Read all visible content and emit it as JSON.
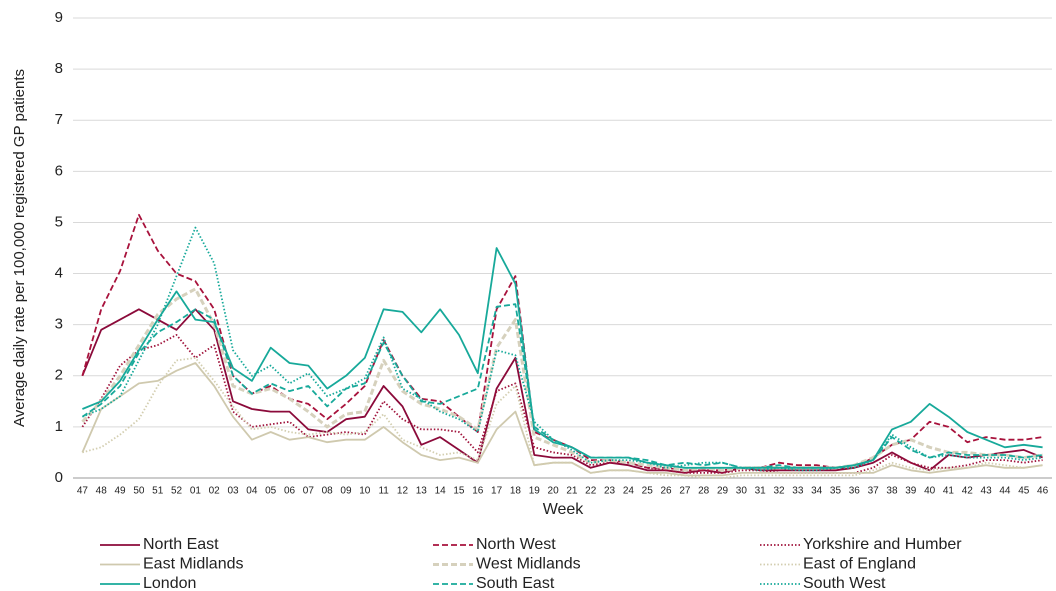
{
  "chart_data": {
    "type": "line",
    "y_label": "Average daily rate per 100,000 registered GP patients",
    "x_label": "Week",
    "categories": [
      "47",
      "48",
      "49",
      "50",
      "51",
      "52",
      "01",
      "02",
      "03",
      "04",
      "05",
      "06",
      "07",
      "08",
      "09",
      "10",
      "11",
      "12",
      "13",
      "14",
      "15",
      "16",
      "17",
      "18",
      "19",
      "20",
      "21",
      "22",
      "23",
      "24",
      "25",
      "26",
      "27",
      "28",
      "29",
      "30",
      "31",
      "32",
      "33",
      "34",
      "35",
      "36",
      "37",
      "38",
      "39",
      "40",
      "41",
      "42",
      "43",
      "44",
      "45",
      "46"
    ],
    "ylim": [
      0,
      9
    ],
    "yticks": [
      0,
      1,
      2,
      3,
      4,
      5,
      6,
      7,
      8,
      9
    ],
    "grid": true,
    "series": [
      {
        "name": "North East",
        "color": "#8b0a3a",
        "line_style": "solid",
        "values": [
          2.0,
          2.9,
          3.1,
          3.3,
          3.1,
          2.9,
          3.3,
          2.9,
          1.5,
          1.35,
          1.3,
          1.3,
          0.95,
          0.9,
          1.15,
          1.2,
          1.8,
          1.4,
          0.65,
          0.8,
          0.55,
          0.3,
          1.75,
          2.35,
          0.45,
          0.4,
          0.4,
          0.2,
          0.3,
          0.25,
          0.15,
          0.15,
          0.1,
          0.15,
          0.1,
          0.2,
          0.15,
          0.15,
          0.15,
          0.15,
          0.15,
          0.2,
          0.3,
          0.5,
          0.3,
          0.15,
          0.45,
          0.4,
          0.45,
          0.5,
          0.55,
          0.4
        ]
      },
      {
        "name": "North West",
        "color": "#a8123c",
        "line_style": "dashed",
        "values": [
          2.0,
          3.3,
          4.05,
          5.15,
          4.45,
          4.0,
          3.85,
          3.3,
          2.0,
          1.65,
          1.8,
          1.55,
          1.45,
          1.15,
          1.45,
          1.8,
          2.7,
          2.0,
          1.55,
          1.5,
          1.2,
          0.9,
          3.3,
          3.95,
          0.9,
          0.75,
          0.6,
          0.35,
          0.35,
          0.3,
          0.2,
          0.2,
          0.15,
          0.15,
          0.15,
          0.2,
          0.2,
          0.3,
          0.25,
          0.25,
          0.2,
          0.2,
          0.4,
          0.65,
          0.75,
          1.1,
          1.0,
          0.7,
          0.8,
          0.75,
          0.75,
          0.8
        ]
      },
      {
        "name": "Yorkshire and Humber",
        "color": "#a0143c",
        "line_style": "dotted",
        "values": [
          1.0,
          1.55,
          2.2,
          2.5,
          2.6,
          2.8,
          2.35,
          2.6,
          1.3,
          1.0,
          1.05,
          1.1,
          0.8,
          0.85,
          0.9,
          0.85,
          1.5,
          1.15,
          0.95,
          0.95,
          0.9,
          0.5,
          1.7,
          1.85,
          0.6,
          0.5,
          0.45,
          0.25,
          0.3,
          0.3,
          0.2,
          0.15,
          0.1,
          0.1,
          0.1,
          0.15,
          0.15,
          0.1,
          0.1,
          0.1,
          0.1,
          0.1,
          0.2,
          0.45,
          0.3,
          0.2,
          0.2,
          0.25,
          0.35,
          0.35,
          0.3,
          0.35
        ]
      },
      {
        "name": "East Midlands",
        "color": "#cfc9ae",
        "line_style": "solid",
        "values": [
          0.5,
          1.35,
          1.6,
          1.85,
          1.9,
          2.1,
          2.25,
          1.8,
          1.2,
          0.75,
          0.9,
          0.75,
          0.8,
          0.7,
          0.75,
          0.75,
          1.0,
          0.7,
          0.45,
          0.35,
          0.4,
          0.3,
          0.95,
          1.3,
          0.25,
          0.3,
          0.3,
          0.1,
          0.15,
          0.15,
          0.1,
          0.1,
          0.05,
          0.05,
          0.05,
          0.1,
          0.1,
          0.1,
          0.1,
          0.1,
          0.1,
          0.1,
          0.1,
          0.25,
          0.15,
          0.1,
          0.15,
          0.2,
          0.25,
          0.2,
          0.2,
          0.25
        ]
      },
      {
        "name": "West Midlands",
        "color": "#d6d1bd",
        "line_style": "dashed",
        "values": [
          1.1,
          1.5,
          2.0,
          2.6,
          3.2,
          3.5,
          3.7,
          3.0,
          1.8,
          1.65,
          1.75,
          1.55,
          1.3,
          1.0,
          1.25,
          1.3,
          2.3,
          1.7,
          1.45,
          1.35,
          1.2,
          0.95,
          2.55,
          3.1,
          0.8,
          0.65,
          0.5,
          0.3,
          0.35,
          0.3,
          0.25,
          0.2,
          0.15,
          0.2,
          0.15,
          0.2,
          0.2,
          0.2,
          0.2,
          0.2,
          0.2,
          0.25,
          0.4,
          0.65,
          0.75,
          0.6,
          0.5,
          0.5,
          0.45,
          0.45,
          0.4,
          0.45
        ]
      },
      {
        "name": "East of England",
        "color": "#d3ceb0",
        "line_style": "dotted",
        "values": [
          0.5,
          0.6,
          0.85,
          1.15,
          1.8,
          2.3,
          2.35,
          1.9,
          1.4,
          0.95,
          1.0,
          0.9,
          0.85,
          0.9,
          0.85,
          0.9,
          1.25,
          0.75,
          0.6,
          0.45,
          0.5,
          0.35,
          1.45,
          1.8,
          0.25,
          0.3,
          0.3,
          0.1,
          0.15,
          0.15,
          0.1,
          0.05,
          0.05,
          0.0,
          0.0,
          0.05,
          0.05,
          0.05,
          0.05,
          0.05,
          0.05,
          0.05,
          0.15,
          0.3,
          0.2,
          0.15,
          0.2,
          0.2,
          0.3,
          0.25,
          0.2,
          0.25
        ]
      },
      {
        "name": "London",
        "color": "#17a99a",
        "line_style": "solid",
        "values": [
          1.35,
          1.5,
          1.9,
          2.5,
          3.1,
          3.65,
          3.1,
          3.05,
          2.15,
          1.9,
          2.55,
          2.25,
          2.2,
          1.75,
          2.0,
          2.35,
          3.3,
          3.25,
          2.85,
          3.3,
          2.8,
          2.05,
          4.5,
          3.8,
          0.95,
          0.7,
          0.6,
          0.4,
          0.4,
          0.4,
          0.3,
          0.25,
          0.2,
          0.2,
          0.2,
          0.2,
          0.2,
          0.2,
          0.2,
          0.2,
          0.2,
          0.25,
          0.35,
          0.95,
          1.1,
          1.45,
          1.2,
          0.9,
          0.75,
          0.6,
          0.65,
          0.6
        ]
      },
      {
        "name": "South East",
        "color": "#17a99a",
        "line_style": "dashed",
        "values": [
          1.2,
          1.45,
          1.8,
          2.45,
          2.85,
          3.05,
          3.3,
          3.1,
          2.0,
          1.65,
          1.85,
          1.7,
          1.8,
          1.4,
          1.75,
          1.85,
          2.65,
          2.0,
          1.5,
          1.45,
          1.6,
          1.75,
          3.35,
          3.4,
          1.0,
          0.75,
          0.6,
          0.4,
          0.4,
          0.4,
          0.35,
          0.25,
          0.3,
          0.25,
          0.3,
          0.2,
          0.2,
          0.25,
          0.2,
          0.2,
          0.2,
          0.25,
          0.35,
          0.8,
          0.55,
          0.4,
          0.5,
          0.45,
          0.45,
          0.45,
          0.4,
          0.45
        ]
      },
      {
        "name": "South West",
        "color": "#17a99a",
        "line_style": "dotted",
        "values": [
          1.2,
          1.35,
          1.6,
          2.3,
          3.0,
          3.95,
          4.9,
          4.2,
          2.5,
          2.0,
          2.2,
          1.85,
          2.05,
          1.6,
          1.75,
          1.95,
          2.75,
          1.75,
          1.55,
          1.3,
          1.15,
          0.9,
          2.5,
          2.4,
          1.1,
          0.75,
          0.55,
          0.3,
          0.35,
          0.35,
          0.3,
          0.2,
          0.25,
          0.3,
          0.3,
          0.2,
          0.15,
          0.2,
          0.15,
          0.15,
          0.2,
          0.2,
          0.35,
          0.85,
          0.6,
          0.4,
          0.45,
          0.4,
          0.4,
          0.4,
          0.35,
          0.4
        ]
      }
    ]
  }
}
